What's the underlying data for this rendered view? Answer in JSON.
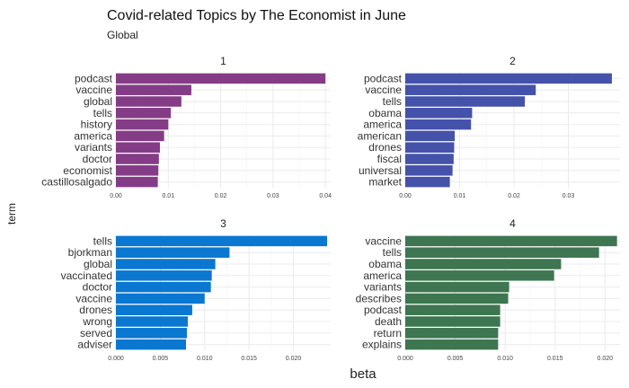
{
  "chart_data": {
    "type": "bar",
    "orientation": "horizontal",
    "title": "Covid-related Topics by The Economist in June",
    "subtitle": "Global",
    "xlabel": "beta",
    "ylabel": "term",
    "grid": true,
    "facets": [
      {
        "label": "1",
        "color": "#843C86",
        "xlim": [
          0,
          0.041
        ],
        "xticks": [
          0.0,
          0.01,
          0.02,
          0.03,
          0.04
        ],
        "xtick_labels": [
          "0.00",
          "0.01",
          "0.02",
          "0.03",
          "0.04"
        ],
        "categories": [
          "podcast",
          "vaccine",
          "global",
          "tells",
          "history",
          "america",
          "variants",
          "doctor",
          "economist",
          "castillosalgado"
        ],
        "values": [
          0.04,
          0.0144,
          0.0125,
          0.0105,
          0.01,
          0.0092,
          0.0084,
          0.0082,
          0.0081,
          0.008
        ]
      },
      {
        "label": "2",
        "color": "#4452AA",
        "xlim": [
          0,
          0.0395
        ],
        "xticks": [
          0.0,
          0.01,
          0.02,
          0.03
        ],
        "xtick_labels": [
          "0.00",
          "0.01",
          "0.02",
          "0.03"
        ],
        "categories": [
          "podcast",
          "vaccine",
          "tells",
          "obama",
          "america",
          "american",
          "drones",
          "fiscal",
          "universal",
          "market"
        ],
        "values": [
          0.038,
          0.024,
          0.022,
          0.0123,
          0.0121,
          0.0091,
          0.009,
          0.0089,
          0.0087,
          0.0082
        ]
      },
      {
        "label": "3",
        "color": "#0A77D0",
        "xlim": [
          0,
          0.0242
        ],
        "xticks": [
          0.0,
          0.005,
          0.01,
          0.015,
          0.02
        ],
        "xtick_labels": [
          "0.000",
          "0.005",
          "0.010",
          "0.015",
          "0.020"
        ],
        "categories": [
          "tells",
          "bjorkman",
          "global",
          "vaccinated",
          "doctor",
          "vaccine",
          "drones",
          "wrong",
          "served",
          "adviser"
        ],
        "values": [
          0.0238,
          0.0128,
          0.0112,
          0.0108,
          0.0107,
          0.01,
          0.0086,
          0.0081,
          0.008,
          0.0079
        ]
      },
      {
        "label": "4",
        "color": "#3D7650",
        "xlim": [
          0,
          0.0215
        ],
        "xticks": [
          0.0,
          0.005,
          0.01,
          0.015,
          0.02
        ],
        "xtick_labels": [
          "0.000",
          "0.005",
          "0.010",
          "0.015",
          "0.020"
        ],
        "categories": [
          "vaccine",
          "tells",
          "obama",
          "america",
          "variants",
          "describes",
          "podcast",
          "death",
          "return",
          "explains"
        ],
        "values": [
          0.0212,
          0.0194,
          0.0156,
          0.0149,
          0.0104,
          0.0103,
          0.0095,
          0.0095,
          0.0093,
          0.0093
        ]
      }
    ]
  }
}
